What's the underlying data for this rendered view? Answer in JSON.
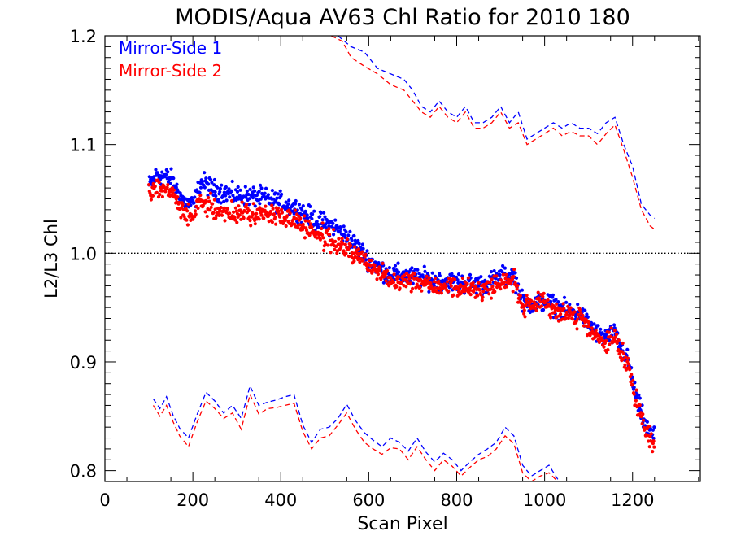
{
  "chart_data": {
    "type": "scatter",
    "title": "MODIS/Aqua AV63 Chl Ratio for 2010 180",
    "xlabel": "Scan Pixel",
    "ylabel": "L2/L3 Chl",
    "xlim": [
      0,
      1354
    ],
    "ylim": [
      0.79,
      1.2
    ],
    "x_ticks": [
      0,
      200,
      400,
      600,
      800,
      1000,
      1200
    ],
    "x_tick_labels": [
      "0",
      "200",
      "400",
      "600",
      "800",
      "1000",
      "1200"
    ],
    "y_ticks": [
      0.8,
      0.9,
      1.0,
      1.1,
      1.2
    ],
    "y_tick_labels": [
      "0.8",
      "0.9",
      "1.0",
      "1.1",
      "1.2"
    ],
    "reference_line": {
      "y": 1.0,
      "style": "dotted"
    },
    "legend_placement": "top-left",
    "series": [
      {
        "name": "Mirror-Side 1",
        "color": "#0000ff",
        "mean": {
          "x": [
            100,
            120,
            150,
            180,
            200,
            220,
            250,
            300,
            350,
            400,
            440,
            480,
            520,
            560,
            600,
            640,
            700,
            760,
            800,
            860,
            900,
            930,
            950,
            980,
            1000,
            1040,
            1080,
            1100,
            1130,
            1160,
            1190,
            1210,
            1230,
            1250
          ],
          "y": [
            1.062,
            1.073,
            1.068,
            1.047,
            1.044,
            1.066,
            1.058,
            1.053,
            1.052,
            1.047,
            1.04,
            1.03,
            1.025,
            1.012,
            0.994,
            0.982,
            0.978,
            0.975,
            0.973,
            0.971,
            0.978,
            0.98,
            0.955,
            0.953,
            0.956,
            0.948,
            0.945,
            0.935,
            0.922,
            0.925,
            0.9,
            0.865,
            0.84,
            0.83
          ]
        },
        "upper_bound": {
          "x": [
            530,
            560,
            590,
            620,
            650,
            680,
            700,
            720,
            740,
            760,
            780,
            800,
            820,
            840,
            860,
            880,
            900,
            920,
            940,
            960,
            980,
            1000,
            1020,
            1040,
            1060,
            1080,
            1100,
            1120,
            1140,
            1160,
            1180,
            1200,
            1220,
            1240,
            1250
          ],
          "y": [
            1.2,
            1.19,
            1.185,
            1.17,
            1.165,
            1.16,
            1.15,
            1.135,
            1.13,
            1.14,
            1.13,
            1.125,
            1.135,
            1.12,
            1.12,
            1.125,
            1.135,
            1.12,
            1.13,
            1.105,
            1.11,
            1.115,
            1.12,
            1.115,
            1.12,
            1.115,
            1.115,
            1.11,
            1.12,
            1.125,
            1.1,
            1.08,
            1.045,
            1.035,
            1.032
          ]
        },
        "lower_bound": {
          "x": [
            110,
            125,
            140,
            155,
            170,
            190,
            210,
            230,
            250,
            270,
            290,
            310,
            330,
            350,
            370,
            390,
            410,
            430,
            450,
            470,
            490,
            510,
            530,
            550,
            570,
            590,
            610,
            630,
            650,
            670,
            690,
            710,
            730,
            750,
            770,
            790,
            810,
            830,
            850,
            870,
            890,
            910,
            930,
            950,
            970,
            990,
            1010,
            1030
          ],
          "y": [
            0.866,
            0.857,
            0.868,
            0.851,
            0.839,
            0.83,
            0.852,
            0.872,
            0.864,
            0.853,
            0.86,
            0.848,
            0.878,
            0.86,
            0.863,
            0.865,
            0.868,
            0.87,
            0.842,
            0.826,
            0.838,
            0.84,
            0.848,
            0.861,
            0.846,
            0.835,
            0.828,
            0.822,
            0.83,
            0.826,
            0.818,
            0.83,
            0.817,
            0.808,
            0.816,
            0.81,
            0.8,
            0.808,
            0.815,
            0.82,
            0.826,
            0.84,
            0.832,
            0.805,
            0.795,
            0.8,
            0.805,
            0.792
          ]
        }
      },
      {
        "name": "Mirror-Side 2",
        "color": "#ff0000",
        "mean": {
          "x": [
            100,
            120,
            150,
            180,
            200,
            220,
            250,
            300,
            350,
            400,
            440,
            480,
            520,
            560,
            600,
            640,
            700,
            760,
            800,
            860,
            900,
            930,
            950,
            980,
            1000,
            1040,
            1080,
            1100,
            1130,
            1160,
            1190,
            1210,
            1230,
            1250
          ],
          "y": [
            1.055,
            1.062,
            1.057,
            1.035,
            1.035,
            1.047,
            1.04,
            1.036,
            1.037,
            1.034,
            1.029,
            1.018,
            1.01,
            1.001,
            0.99,
            0.977,
            0.975,
            0.971,
            0.969,
            0.966,
            0.974,
            0.976,
            0.95,
            0.952,
            0.954,
            0.944,
            0.942,
            0.93,
            0.918,
            0.92,
            0.897,
            0.86,
            0.835,
            0.825
          ]
        },
        "upper_bound": {
          "x": [
            515,
            540,
            560,
            590,
            620,
            650,
            680,
            700,
            720,
            740,
            760,
            780,
            800,
            820,
            840,
            860,
            880,
            900,
            920,
            940,
            960,
            980,
            1000,
            1020,
            1040,
            1060,
            1080,
            1100,
            1120,
            1140,
            1160,
            1180,
            1200,
            1220,
            1240,
            1250
          ],
          "y": [
            1.2,
            1.195,
            1.18,
            1.172,
            1.165,
            1.155,
            1.15,
            1.14,
            1.13,
            1.125,
            1.135,
            1.125,
            1.12,
            1.13,
            1.115,
            1.115,
            1.12,
            1.13,
            1.115,
            1.12,
            1.1,
            1.105,
            1.11,
            1.115,
            1.108,
            1.112,
            1.108,
            1.108,
            1.1,
            1.11,
            1.118,
            1.095,
            1.07,
            1.04,
            1.025,
            1.022
          ]
        },
        "lower_bound": {
          "x": [
            110,
            125,
            140,
            155,
            170,
            190,
            210,
            230,
            250,
            270,
            290,
            310,
            330,
            350,
            370,
            390,
            410,
            430,
            450,
            470,
            490,
            510,
            530,
            550,
            570,
            590,
            610,
            630,
            650,
            670,
            690,
            710,
            730,
            750,
            770,
            790,
            810,
            830,
            850,
            870,
            890,
            910,
            930,
            950,
            970,
            990,
            1010,
            1030
          ],
          "y": [
            0.86,
            0.85,
            0.86,
            0.845,
            0.832,
            0.822,
            0.845,
            0.864,
            0.857,
            0.848,
            0.853,
            0.838,
            0.87,
            0.852,
            0.857,
            0.858,
            0.86,
            0.862,
            0.836,
            0.82,
            0.83,
            0.832,
            0.842,
            0.853,
            0.838,
            0.826,
            0.82,
            0.815,
            0.821,
            0.82,
            0.81,
            0.822,
            0.81,
            0.8,
            0.81,
            0.804,
            0.795,
            0.803,
            0.81,
            0.813,
            0.82,
            0.832,
            0.825,
            0.798,
            0.79,
            0.795,
            0.798,
            0.79
          ]
        }
      }
    ]
  }
}
